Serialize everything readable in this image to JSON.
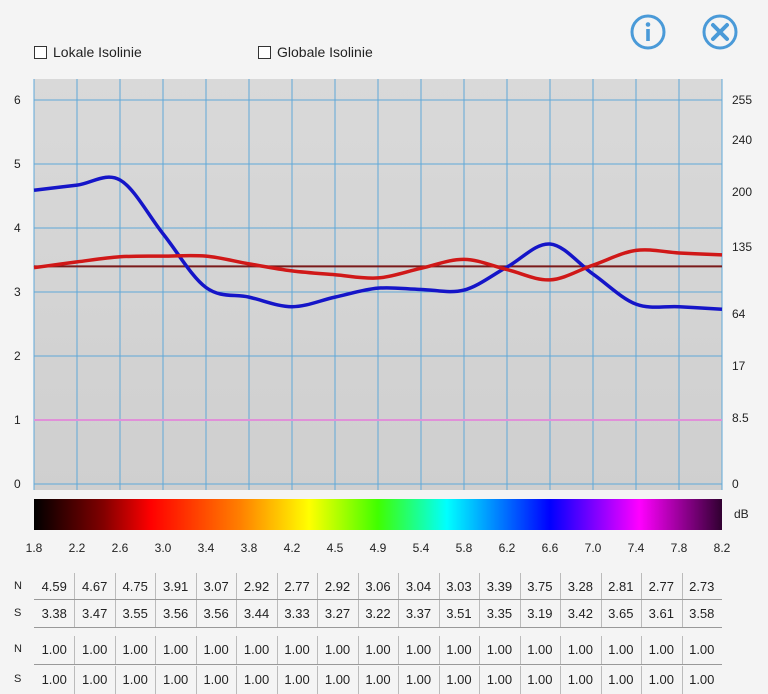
{
  "controls": {
    "local_isoline_label": "Lokale Isolinie",
    "global_isoline_label": "Globale Isolinie",
    "info_icon": "info-icon",
    "close_icon": "close-icon"
  },
  "colors": {
    "plot_bg": "#d6d6d6",
    "grid": "#5fa8d8",
    "blue_series": "#1515c8",
    "red_series": "#d01818",
    "dark_red_line": "#7a1a1a",
    "pink_line": "#e090d8",
    "icon": "#4a9ad8"
  },
  "chart_data": {
    "type": "line",
    "x": [
      1.8,
      2.2,
      2.6,
      3.0,
      3.4,
      3.8,
      4.2,
      4.5,
      4.9,
      5.4,
      5.8,
      6.2,
      6.6,
      7.0,
      7.4,
      7.8,
      8.2
    ],
    "x_tick_labels": [
      "1.8",
      "2.2",
      "2.6",
      "3.0",
      "3.4",
      "3.8",
      "4.2",
      "4.5",
      "4.9",
      "5.4",
      "5.8",
      "6.2",
      "6.6",
      "7.0",
      "7.4",
      "7.8",
      "8.2"
    ],
    "ylim": [
      0,
      6
    ],
    "y_left_ticks": [
      0,
      1,
      2,
      3,
      4,
      5,
      6
    ],
    "y_right_tick_labels": [
      "0",
      "8.5",
      "17",
      "64",
      "135",
      "200",
      "240",
      "255"
    ],
    "colorbar_unit": "dB",
    "grid": true,
    "series": [
      {
        "color": "blue",
        "values": [
          4.59,
          4.67,
          4.75,
          3.91,
          3.07,
          2.92,
          2.77,
          2.92,
          3.06,
          3.04,
          3.03,
          3.39,
          3.75,
          3.28,
          2.81,
          2.77,
          2.73
        ]
      },
      {
        "color": "red",
        "values": [
          3.38,
          3.47,
          3.55,
          3.56,
          3.56,
          3.44,
          3.33,
          3.27,
          3.22,
          3.37,
          3.51,
          3.35,
          3.19,
          3.42,
          3.65,
          3.61,
          3.58
        ]
      }
    ],
    "horizontal_lines": [
      {
        "color": "dark-red",
        "y": 3.4
      },
      {
        "color": "pink",
        "y": 1.0
      }
    ]
  },
  "table": {
    "rows": [
      {
        "label": "N",
        "values": [
          "4.59",
          "4.67",
          "4.75",
          "3.91",
          "3.07",
          "2.92",
          "2.77",
          "2.92",
          "3.06",
          "3.04",
          "3.03",
          "3.39",
          "3.75",
          "3.28",
          "2.81",
          "2.77",
          "2.73"
        ]
      },
      {
        "label": "S",
        "values": [
          "3.38",
          "3.47",
          "3.55",
          "3.56",
          "3.56",
          "3.44",
          "3.33",
          "3.27",
          "3.22",
          "3.37",
          "3.51",
          "3.35",
          "3.19",
          "3.42",
          "3.65",
          "3.61",
          "3.58"
        ]
      },
      {
        "label": "N",
        "values": [
          "1.00",
          "1.00",
          "1.00",
          "1.00",
          "1.00",
          "1.00",
          "1.00",
          "1.00",
          "1.00",
          "1.00",
          "1.00",
          "1.00",
          "1.00",
          "1.00",
          "1.00",
          "1.00",
          "1.00"
        ]
      },
      {
        "label": "S",
        "values": [
          "1.00",
          "1.00",
          "1.00",
          "1.00",
          "1.00",
          "1.00",
          "1.00",
          "1.00",
          "1.00",
          "1.00",
          "1.00",
          "1.00",
          "1.00",
          "1.00",
          "1.00",
          "1.00",
          "1.00"
        ]
      }
    ]
  }
}
